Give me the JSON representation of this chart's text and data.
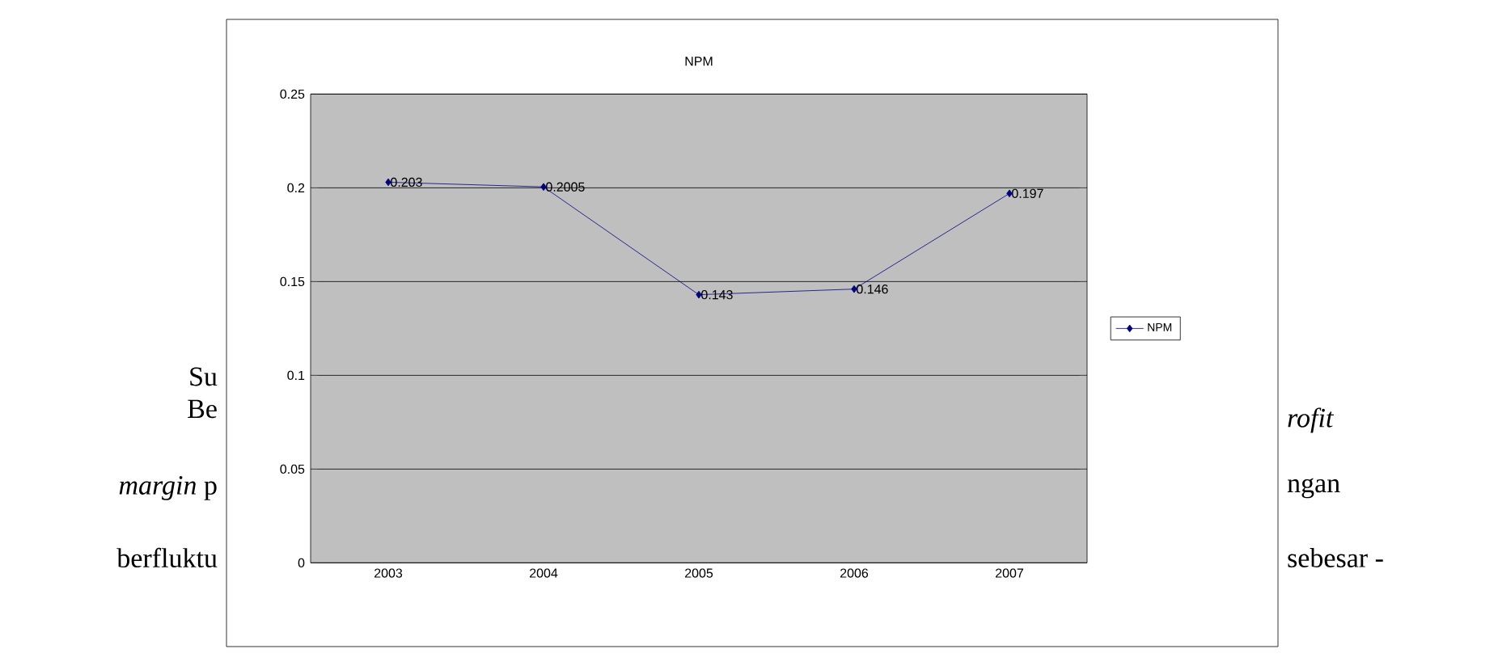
{
  "chart_data": {
    "type": "line",
    "title": "NPM",
    "categories": [
      "2003",
      "2004",
      "2005",
      "2006",
      "2007"
    ],
    "series": [
      {
        "name": "NPM",
        "color": "#000080",
        "values": [
          0.203,
          0.2005,
          0.143,
          0.146,
          0.197
        ]
      }
    ],
    "ylim": [
      0,
      0.25
    ],
    "yticks": [
      0,
      0.05,
      0.1,
      0.15,
      0.2,
      0.25
    ],
    "grid": "y",
    "legend": "right",
    "marker": "diamond",
    "data_labels": true,
    "annotations": [
      "Su",
      "Be",
      "*margin* p",
      "berfluktu",
      "*rofit*",
      "ngan",
      "sebesar -"
    ]
  }
}
